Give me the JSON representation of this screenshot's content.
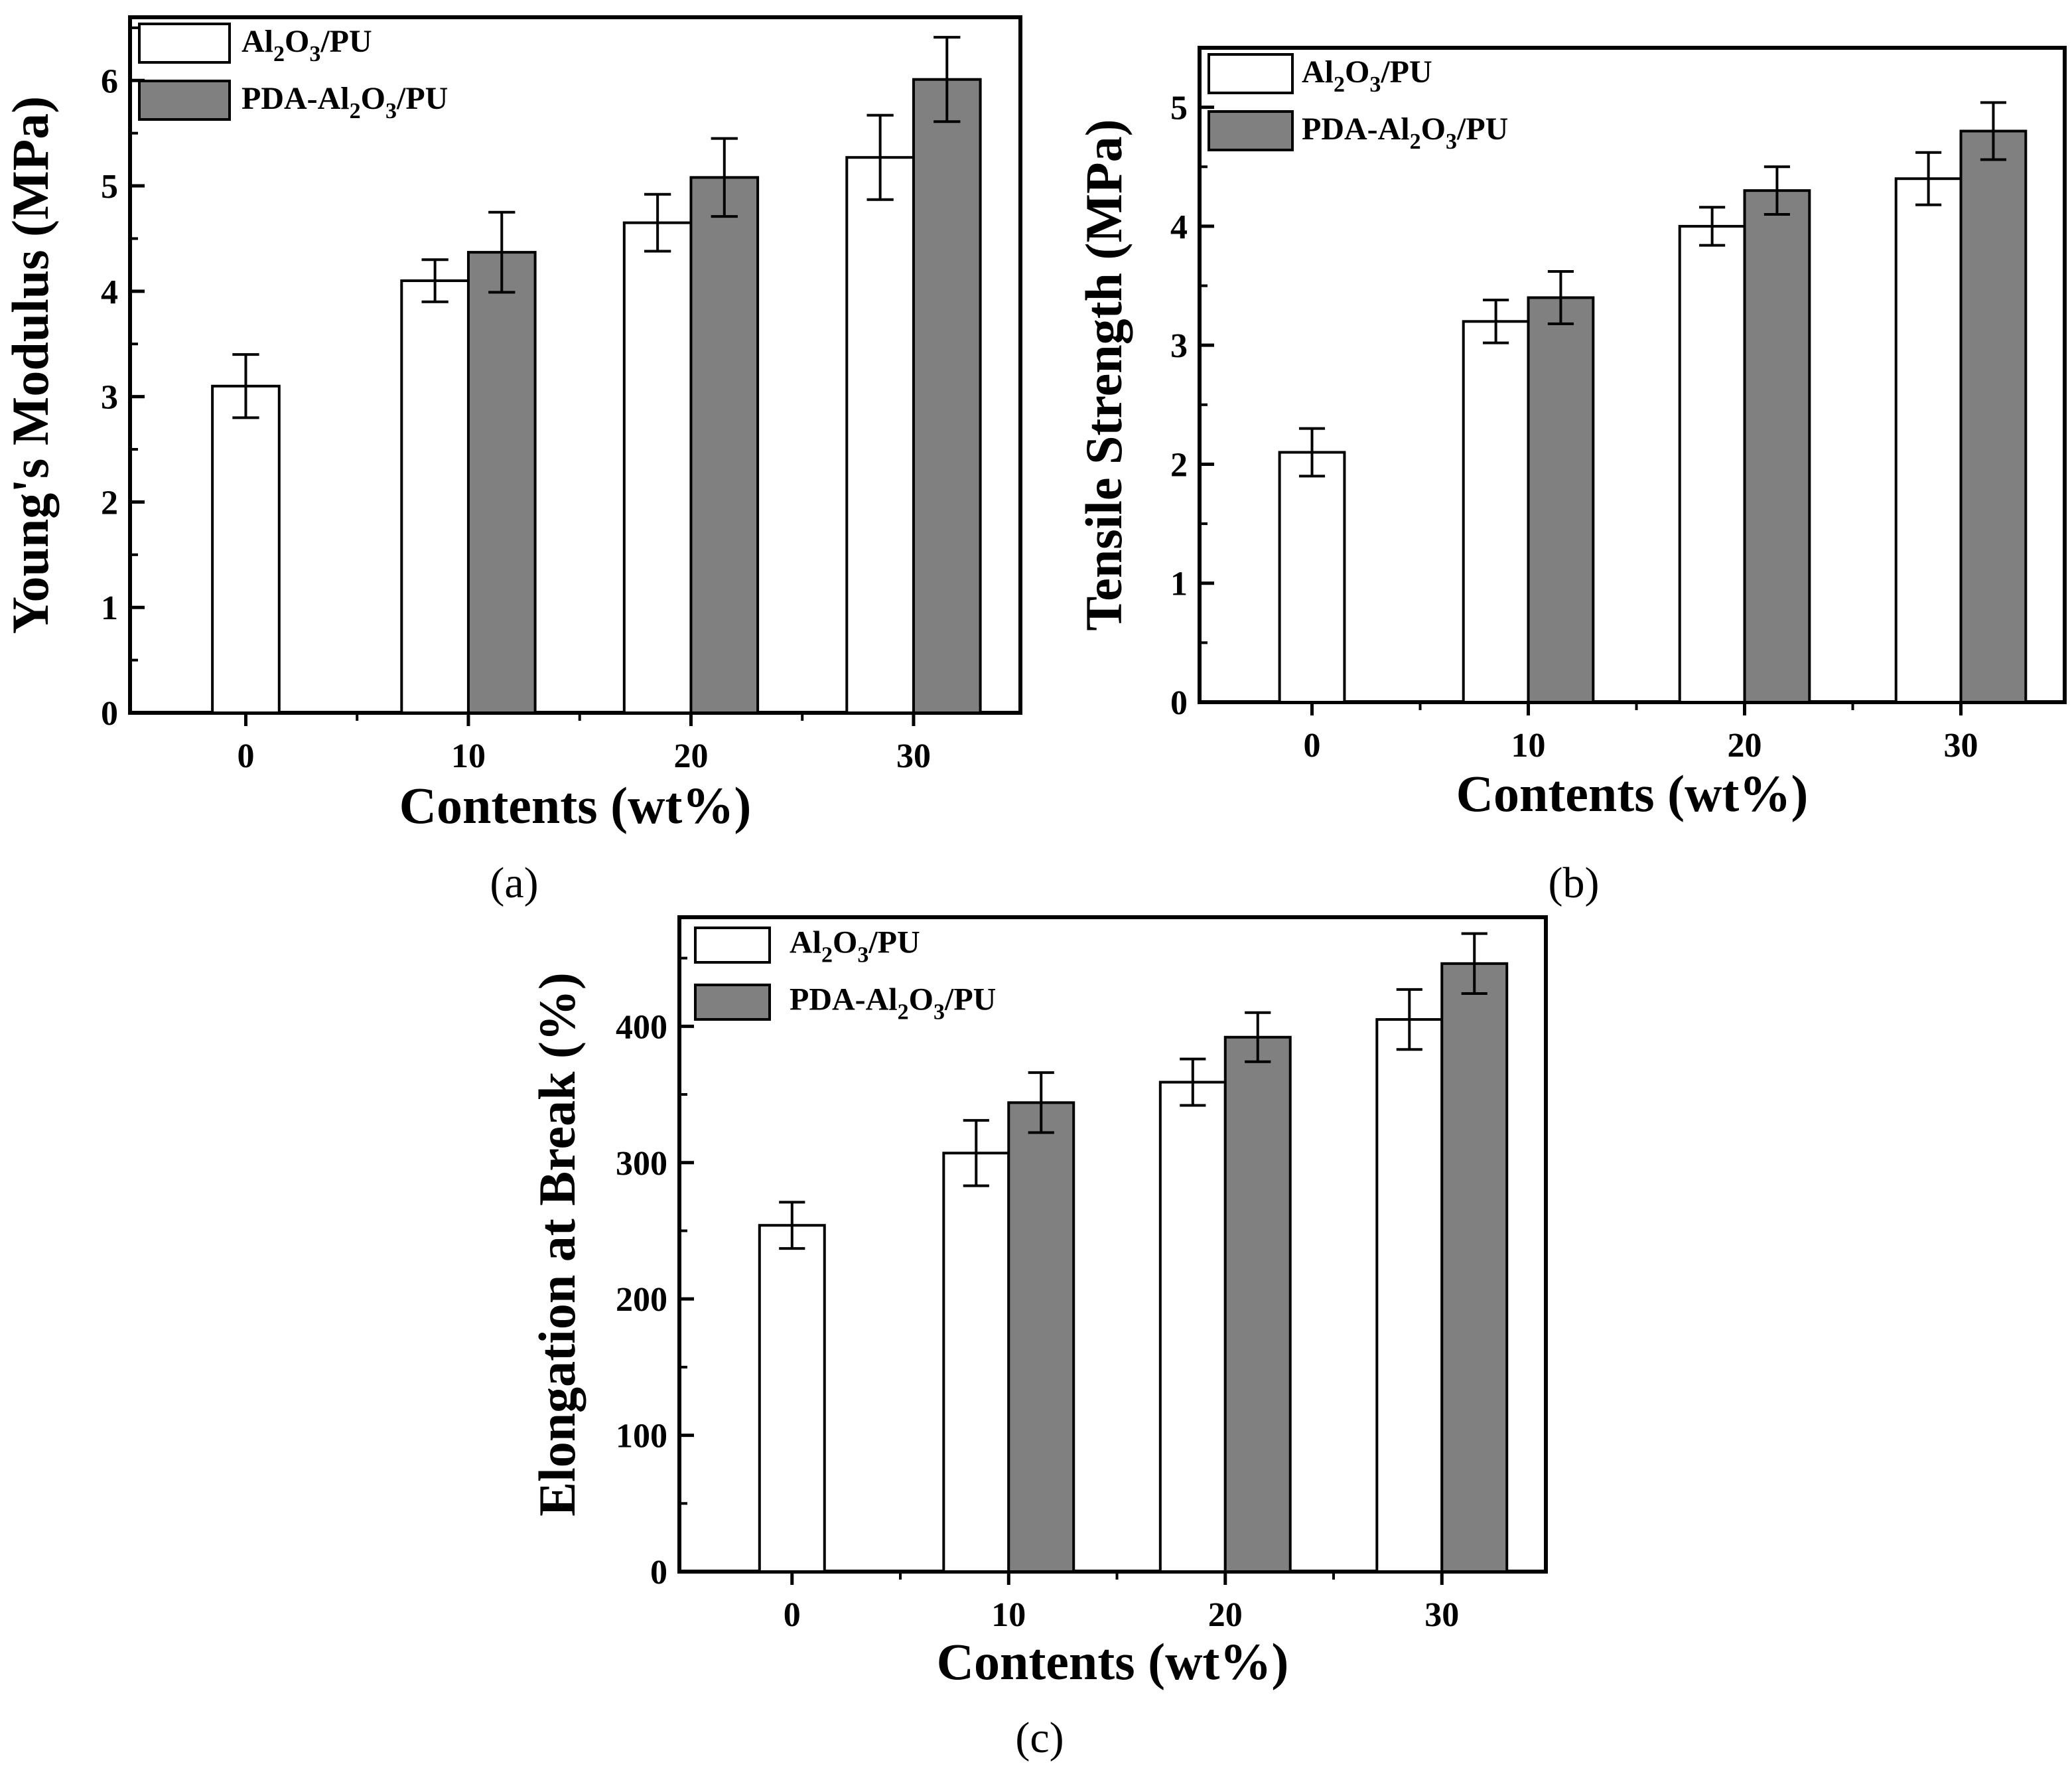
{
  "colors": {
    "al2o3_pu": "#ffffff",
    "pda_al2o3_pu": "#808080",
    "stroke": "#000000"
  },
  "chart_data": [
    {
      "panel": "(a)",
      "type": "bar",
      "categories": [
        "0",
        "10",
        "20",
        "30"
      ],
      "xlabel": "Contents (wt%)",
      "ylabel": "Young's Modulus (MPa)",
      "ylim": [
        0,
        6.6
      ],
      "yticks": [
        "0",
        "1",
        "2",
        "3",
        "4",
        "5",
        "6"
      ],
      "legend_position": "top-left",
      "series": [
        {
          "name": "Al2O3/PU",
          "label_parts": [
            "Al",
            "2",
            "O",
            "3",
            "/PU"
          ],
          "values": [
            3.1,
            4.1,
            4.65,
            5.27
          ],
          "errors": [
            0.3,
            0.2,
            0.27,
            0.4
          ]
        },
        {
          "name": "PDA-Al2O3/PU",
          "label_parts": [
            "PDA-Al",
            "2",
            "O",
            "3",
            "/PU"
          ],
          "values": [
            null,
            4.37,
            5.08,
            6.01
          ],
          "errors": [
            null,
            0.38,
            0.37,
            0.4
          ]
        }
      ]
    },
    {
      "panel": "(b)",
      "type": "bar",
      "categories": [
        "0",
        "10",
        "20",
        "30"
      ],
      "xlabel": "Contents (wt%)",
      "ylabel": "Tensile Strength (MPa)",
      "ylim": [
        0,
        5.5
      ],
      "yticks": [
        "0",
        "1",
        "2",
        "3",
        "4",
        "5"
      ],
      "legend_position": "top-left",
      "series": [
        {
          "name": "Al2O3/PU",
          "label_parts": [
            "Al",
            "2",
            "O",
            "3",
            "/PU"
          ],
          "values": [
            2.1,
            3.2,
            4.0,
            4.4
          ],
          "errors": [
            0.2,
            0.18,
            0.16,
            0.22
          ]
        },
        {
          "name": "PDA-Al2O3/PU",
          "label_parts": [
            "PDA-Al",
            "2",
            "O",
            "3",
            "/PU"
          ],
          "values": [
            null,
            3.4,
            4.3,
            4.8
          ],
          "errors": [
            null,
            0.22,
            0.2,
            0.24
          ]
        }
      ]
    },
    {
      "panel": "(c)",
      "type": "bar",
      "categories": [
        "0",
        "10",
        "20",
        "30"
      ],
      "xlabel": "Contents (wt%)",
      "ylabel": "Elongation at Break (%)",
      "ylim": [
        0,
        480
      ],
      "yticks": [
        "0",
        "100",
        "200",
        "300",
        "400"
      ],
      "legend_position": "top-left",
      "series": [
        {
          "name": "Al2O3/PU",
          "label_parts": [
            "Al",
            "2",
            "O",
            "3",
            "/PU"
          ],
          "values": [
            254,
            307,
            359,
            405
          ],
          "errors": [
            17,
            24,
            17,
            22
          ]
        },
        {
          "name": "PDA-Al2O3/PU",
          "label_parts": [
            "PDA-Al",
            "2",
            "O",
            "3",
            "/PU"
          ],
          "values": [
            null,
            344,
            392,
            446
          ],
          "errors": [
            null,
            22,
            18,
            22
          ]
        }
      ]
    }
  ]
}
